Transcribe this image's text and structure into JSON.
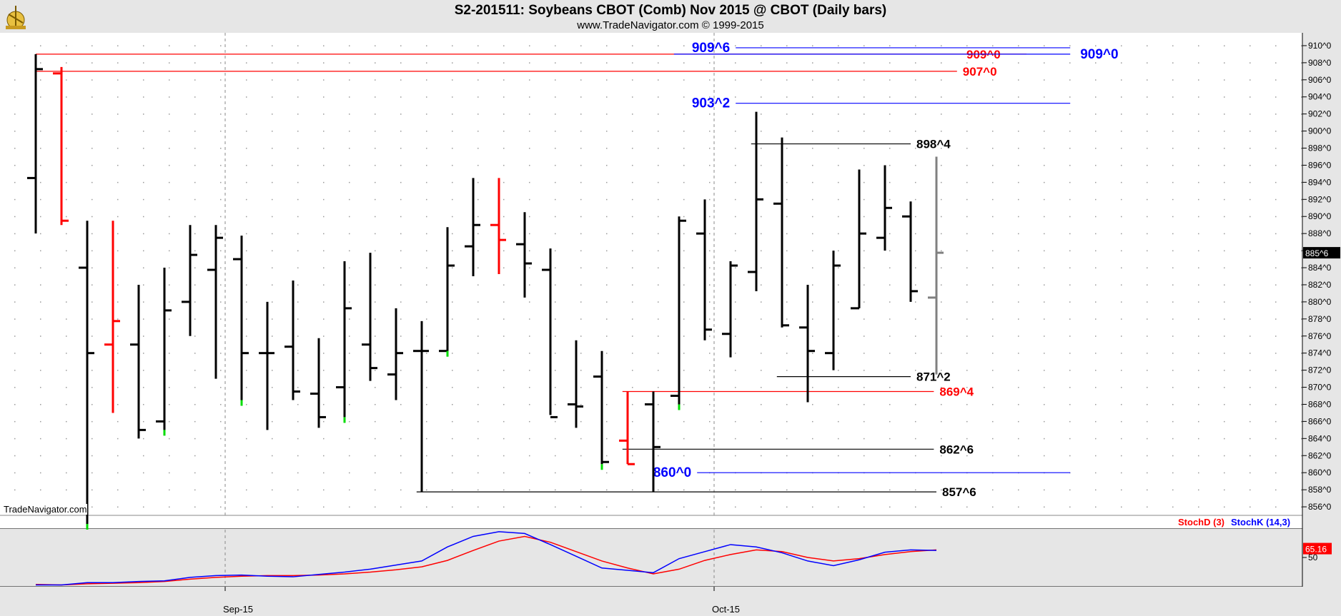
{
  "header": {
    "title": "S2-201511:  Soybeans CBOT (Comb) Nov 2015 @ CBOT  (Daily bars)",
    "subtitle": "www.TradeNavigator.com © 1999-2015"
  },
  "watermark": "TradeNavigator.com",
  "colors": {
    "up": "#000000",
    "down": "#ff0000",
    "blue": "#0000ff",
    "green": "#00dd00",
    "current": "#808080"
  },
  "chart_data": [
    {
      "type": "ohlc",
      "title": "S2-201511:  Soybeans CBOT (Comb) Nov 2015 @ CBOT  (Daily bars)",
      "ylim": [
        854.5,
        911.5
      ],
      "y_tick_values": [
        856,
        858,
        860,
        862,
        864,
        866,
        868,
        870,
        872,
        874,
        876,
        878,
        880,
        882,
        884,
        886,
        888,
        890,
        892,
        894,
        896,
        898,
        900,
        902,
        904,
        906,
        908,
        910
      ],
      "y_ticks": [
        "856^0",
        "858^0",
        "860^0",
        "862^0",
        "864^0",
        "866^0",
        "868^0",
        "870^0",
        "872^0",
        "874^0",
        "876^0",
        "878^0",
        "880^0",
        "882^0",
        "884^0",
        "886^0",
        "888^0",
        "890^0",
        "892^0",
        "894^0",
        "896^0",
        "898^0",
        "900^0",
        "902^0",
        "904^0",
        "906^0",
        "908^0",
        "910^0"
      ],
      "x_labels": [
        {
          "label": "Sep-15",
          "index": 8
        },
        {
          "label": "Oct-15",
          "index": 27
        }
      ],
      "last_price": {
        "value": 885.75,
        "label": "885^6"
      },
      "bars": [
        {
          "o": 894.5,
          "h": 909,
          "l": 888,
          "c": 907.25,
          "color": "up"
        },
        {
          "o": 906.75,
          "h": 907.5,
          "l": 889,
          "c": 889.5,
          "color": "down"
        },
        {
          "o": 884,
          "h": 889.5,
          "l": 854,
          "c": 874,
          "color": "up",
          "tick": "green"
        },
        {
          "o": 875,
          "h": 889.5,
          "l": 867,
          "c": 877.75,
          "color": "down"
        },
        {
          "o": 875,
          "h": 882,
          "l": 864,
          "c": 865,
          "color": "up"
        },
        {
          "o": 866,
          "h": 884,
          "l": 865,
          "c": 879,
          "color": "up",
          "tick": "green"
        },
        {
          "o": 880,
          "h": 889,
          "l": 876,
          "c": 885.5,
          "color": "up"
        },
        {
          "o": 883.75,
          "h": 889,
          "l": 871,
          "c": 887.5,
          "color": "up"
        },
        {
          "o": 885,
          "h": 887.75,
          "l": 868.5,
          "c": 874,
          "color": "up",
          "tick": "green"
        },
        {
          "o": 874,
          "h": 880,
          "l": 865,
          "c": 874,
          "color": "up"
        },
        {
          "o": 874.75,
          "h": 882.5,
          "l": 868.5,
          "c": 869.5,
          "color": "up"
        },
        {
          "o": 869.25,
          "h": 875.75,
          "l": 865.25,
          "c": 866.5,
          "color": "up"
        },
        {
          "o": 870,
          "h": 884.75,
          "l": 866.5,
          "c": 879.25,
          "color": "up",
          "tick": "green"
        },
        {
          "o": 875,
          "h": 885.75,
          "l": 870.75,
          "c": 872.25,
          "color": "up"
        },
        {
          "o": 871.5,
          "h": 879.25,
          "l": 868.5,
          "c": 874,
          "color": "up"
        },
        {
          "o": 874.25,
          "h": 877.75,
          "l": 857.75,
          "c": 874.25,
          "color": "up"
        },
        {
          "o": 874.25,
          "h": 888.75,
          "l": 874.25,
          "c": 884.25,
          "color": "up",
          "tick": "green"
        },
        {
          "o": 886.5,
          "h": 894.5,
          "l": 883,
          "c": 889,
          "color": "up"
        },
        {
          "o": 889,
          "h": 894.5,
          "l": 883.25,
          "c": 887.25,
          "color": "down"
        },
        {
          "o": 886.75,
          "h": 890.5,
          "l": 880.5,
          "c": 884.5,
          "color": "up"
        },
        {
          "o": 883.75,
          "h": 886.25,
          "l": 866.75,
          "c": 866.5,
          "color": "up"
        },
        {
          "o": 868,
          "h": 875.5,
          "l": 865.25,
          "c": 867.75,
          "color": "up"
        },
        {
          "o": 871.25,
          "h": 874.25,
          "l": 861,
          "c": 861.25,
          "color": "up",
          "tick": "green"
        },
        {
          "o": 863.75,
          "h": 869.5,
          "l": 861,
          "c": 861,
          "color": "down"
        },
        {
          "o": 868,
          "h": 869.5,
          "l": 857.75,
          "c": 863,
          "color": "up"
        },
        {
          "o": 869,
          "h": 890,
          "l": 868,
          "c": 889.5,
          "color": "up",
          "tick": "green"
        },
        {
          "o": 888,
          "h": 892,
          "l": 875.5,
          "c": 876.75,
          "color": "up"
        },
        {
          "o": 876.25,
          "h": 884.75,
          "l": 873.5,
          "c": 884.25,
          "color": "up"
        },
        {
          "o": 883.5,
          "h": 902.25,
          "l": 881.25,
          "c": 892,
          "color": "up"
        },
        {
          "o": 891.5,
          "h": 899.25,
          "l": 877,
          "c": 877.25,
          "color": "up"
        },
        {
          "o": 877,
          "h": 882,
          "l": 868.25,
          "c": 874.25,
          "color": "up"
        },
        {
          "o": 874,
          "h": 886,
          "l": 872,
          "c": 884.25,
          "color": "up"
        },
        {
          "o": 879.25,
          "h": 895.5,
          "l": 879.25,
          "c": 888,
          "color": "up"
        },
        {
          "o": 887.5,
          "h": 896,
          "l": 886,
          "c": 891,
          "color": "up"
        },
        {
          "o": 890,
          "h": 891.75,
          "l": 880,
          "c": 881.25,
          "color": "up"
        },
        {
          "o": 880.5,
          "h": 897,
          "l": 871.5,
          "c": 885.75,
          "color": "current"
        }
      ],
      "levels": [
        {
          "value": 909.0,
          "label": "909^0",
          "color": "red",
          "from": 0,
          "to": 38.5,
          "label_at": "right-inner"
        },
        {
          "value": 907.0,
          "label": "907^0",
          "color": "red",
          "from": 0,
          "to": 35.8,
          "label_at": "end"
        },
        {
          "value": 909.75,
          "label": "909^6",
          "color": "blue",
          "from": 27.2,
          "to": 40.2,
          "label_at": "start"
        },
        {
          "value": 909.0,
          "label": "909^0",
          "color": "blue",
          "from": 24.8,
          "to": 40.2,
          "label_at": "outside"
        },
        {
          "value": 903.25,
          "label": "903^2",
          "color": "blue",
          "from": 27.2,
          "to": 40.2,
          "label_at": "start"
        },
        {
          "value": 898.5,
          "label": "898^4",
          "color": "black",
          "from": 27.8,
          "to": 34.0,
          "label_at": "end"
        },
        {
          "value": 871.25,
          "label": "871^2",
          "color": "black",
          "from": 28.8,
          "to": 34.0,
          "label_at": "end"
        },
        {
          "value": 869.5,
          "label": "869^4",
          "color": "red",
          "from": 22.8,
          "to": 34.9,
          "label_at": "end"
        },
        {
          "value": 862.75,
          "label": "862^6",
          "color": "black",
          "from": 22.8,
          "to": 34.9,
          "label_at": "end"
        },
        {
          "value": 860.0,
          "label": "860^0",
          "color": "blue",
          "from": 25.7,
          "to": 40.2,
          "label_at": "start"
        },
        {
          "value": 857.75,
          "label": "857^6",
          "color": "black",
          "from": 14.8,
          "to": 35.0,
          "label_at": "end"
        }
      ]
    },
    {
      "type": "line",
      "legend": [
        {
          "name": "StochD (3)",
          "color": "#ff0000"
        },
        {
          "name": "StochK (14,3)",
          "color": "#0000ff"
        }
      ],
      "ylim": [
        0,
        100
      ],
      "y_ticks": [
        50
      ],
      "last_value": {
        "value": 65.16,
        "label": "65.16"
      },
      "series": [
        {
          "name": "StochD (3)",
          "values": [
            4,
            3,
            5,
            6,
            7,
            9,
            13,
            16,
            18,
            19,
            19,
            20,
            22,
            25,
            29,
            34,
            45,
            62,
            78,
            86,
            76,
            60,
            44,
            32,
            22,
            30,
            45,
            55,
            63,
            60,
            50,
            44,
            48,
            55,
            60,
            63
          ]
        },
        {
          "name": "StochK (14,3)",
          "values": [
            3,
            3,
            7,
            7,
            9,
            10,
            16,
            19,
            20,
            18,
            17,
            21,
            25,
            30,
            37,
            44,
            68,
            86,
            94,
            91,
            72,
            52,
            32,
            28,
            24,
            48,
            60,
            72,
            68,
            58,
            44,
            36,
            46,
            59,
            63,
            62
          ]
        }
      ]
    }
  ]
}
